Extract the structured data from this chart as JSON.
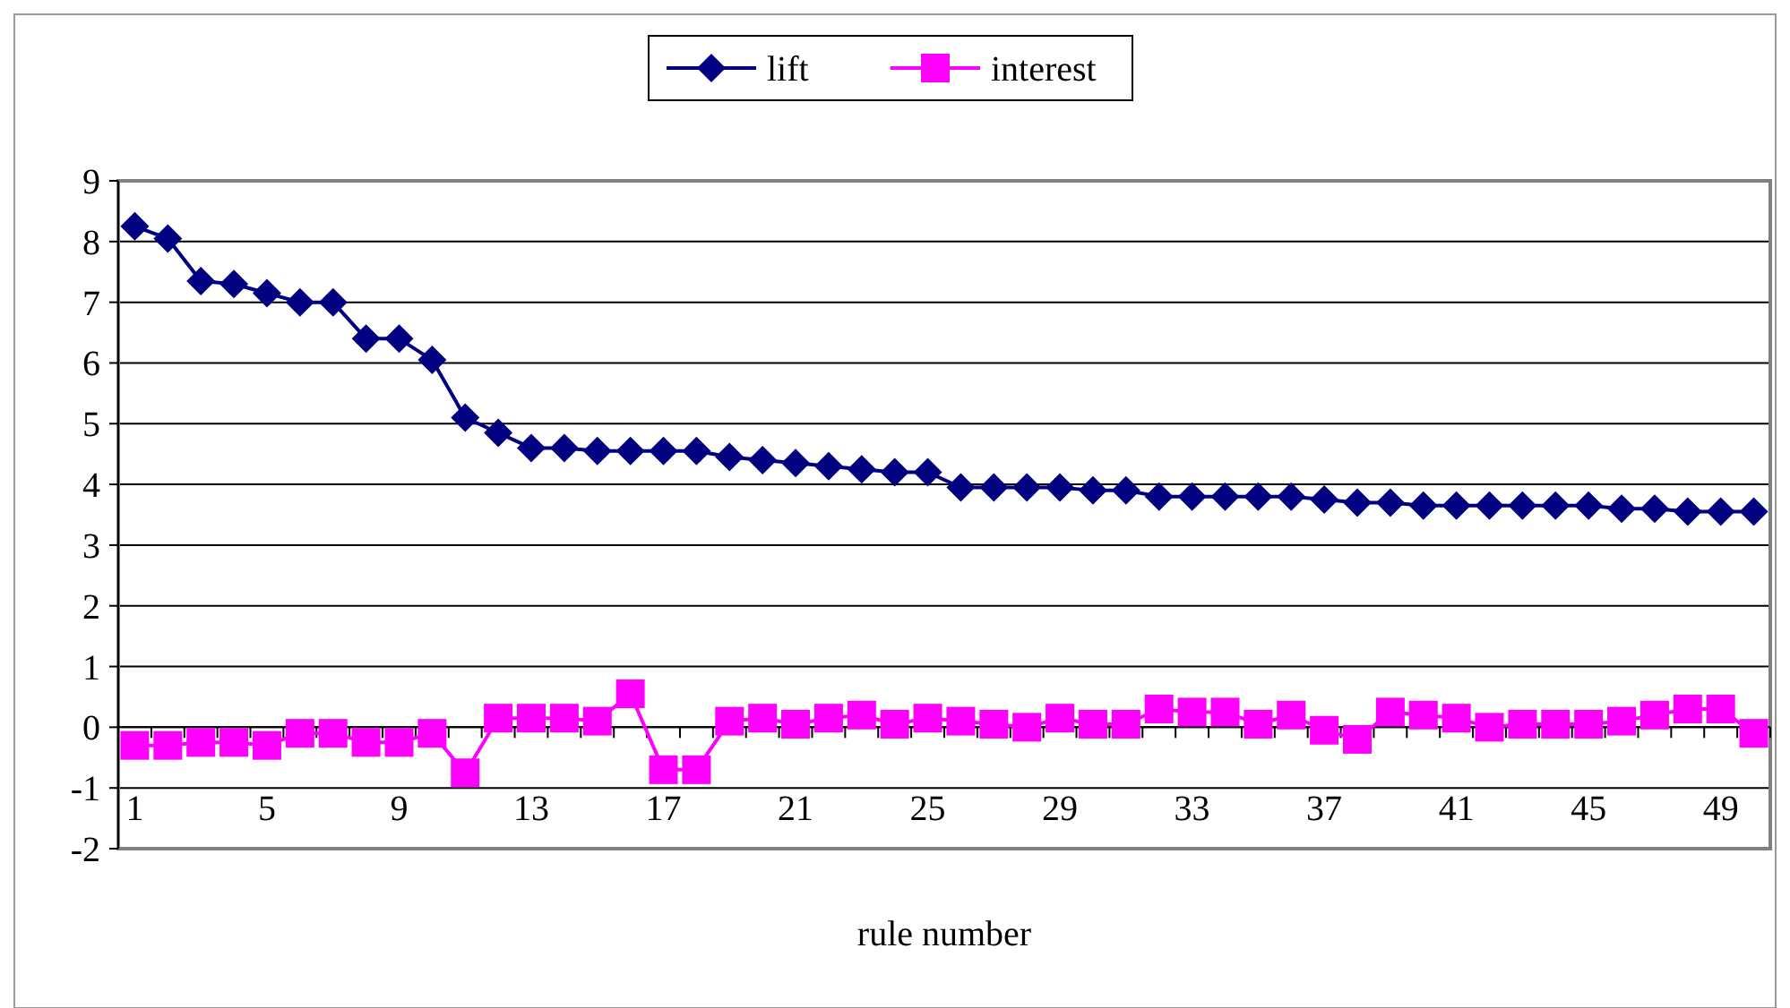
{
  "chart_data": {
    "type": "line",
    "xlabel": "rule number",
    "categories": [
      "1",
      null,
      null,
      null,
      "5",
      null,
      null,
      null,
      "9",
      null,
      null,
      null,
      "13",
      null,
      null,
      null,
      "17",
      null,
      null,
      null,
      "21",
      null,
      null,
      null,
      "25",
      null,
      null,
      null,
      "29",
      null,
      null,
      null,
      "33",
      null,
      null,
      null,
      "37",
      null,
      null,
      null,
      "41",
      null,
      null,
      null,
      "45",
      null,
      null,
      null,
      "49",
      null
    ],
    "series": [
      {
        "name": "lift",
        "color": "#000080",
        "marker": "diamond",
        "values": [
          8.25,
          8.05,
          7.35,
          7.3,
          7.15,
          7.0,
          7.0,
          6.4,
          6.4,
          6.05,
          5.1,
          4.85,
          4.6,
          4.6,
          4.55,
          4.55,
          4.55,
          4.55,
          4.45,
          4.4,
          4.35,
          4.3,
          4.25,
          4.2,
          4.2,
          3.95,
          3.95,
          3.95,
          3.95,
          3.9,
          3.9,
          3.8,
          3.8,
          3.8,
          3.8,
          3.8,
          3.75,
          3.7,
          3.7,
          3.65,
          3.65,
          3.65,
          3.65,
          3.65,
          3.65,
          3.6,
          3.6,
          3.55,
          3.55,
          3.55
        ]
      },
      {
        "name": "interest",
        "color": "#ff00ff",
        "marker": "square",
        "values": [
          -0.3,
          -0.3,
          -0.25,
          -0.25,
          -0.3,
          -0.1,
          -0.1,
          -0.25,
          -0.25,
          -0.1,
          -0.75,
          0.15,
          0.15,
          0.15,
          0.1,
          0.55,
          -0.7,
          -0.7,
          0.1,
          0.15,
          0.05,
          0.15,
          0.2,
          0.05,
          0.15,
          0.1,
          0.05,
          0.0,
          0.15,
          0.05,
          0.05,
          0.3,
          0.25,
          0.25,
          0.05,
          0.2,
          -0.05,
          -0.2,
          0.25,
          0.2,
          0.15,
          0.0,
          0.05,
          0.05,
          0.05,
          0.1,
          0.2,
          0.3,
          0.3,
          -0.1
        ]
      }
    ],
    "ylim": [
      -2,
      9
    ],
    "yticks": [
      -2,
      -1,
      0,
      1,
      2,
      3,
      4,
      5,
      6,
      7,
      8,
      9
    ],
    "grid": "y",
    "legend": "top",
    "line_style": "solid"
  }
}
